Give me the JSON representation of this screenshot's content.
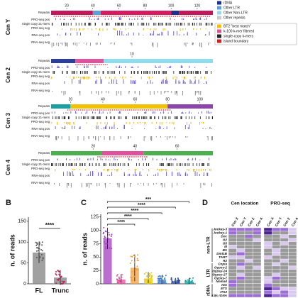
{
  "panel_a": {
    "legend_repeats": [
      {
        "name": "rDNA",
        "color": "#1d2f8f"
      },
      {
        "name": "Other LTR",
        "color": "#5aa0dc"
      },
      {
        "name": "Other Non-LTR",
        "color": "#9ad6ea"
      },
      {
        "name": "Other repeats",
        "color": "#c9c9c9"
      }
    ],
    "legend_marks": [
      {
        "name": "BT2 \"best match\"",
        "color": "#f2c200"
      },
      {
        "name": "k-100 k-mer filtered",
        "color": "#e0529c"
      },
      {
        "name": "single-copy k-mers",
        "color": "#222222"
      },
      {
        "name": "island boundary",
        "color": "#d62020"
      }
    ],
    "track_labels": [
      "Repeats",
      "PRO-seq pos",
      "Single copy 21-mers",
      "PRO-seq neg",
      "RNA-seq pos",
      "RNA-seq neg"
    ],
    "centromeres": [
      {
        "name": "Cen Y",
        "xlim": [
          8,
          132
        ],
        "ticks": [
          20,
          40,
          60,
          80,
          100,
          120
        ],
        "island": [
          10,
          130
        ],
        "repeats": [
          {
            "start": 8,
            "end": 40,
            "color": "#c2185b"
          },
          {
            "start": 40,
            "end": 46,
            "color": "#5aa0dc"
          },
          {
            "start": 46,
            "end": 100,
            "color": "#d81b60"
          },
          {
            "start": 100,
            "end": 106,
            "color": "#1d2f8f"
          },
          {
            "start": 106,
            "end": 132,
            "color": "#c2185b"
          }
        ]
      },
      {
        "name": "Cen 2",
        "xlim": [
          0,
          20
        ],
        "ticks": [
          10
        ],
        "island": [
          3,
          7
        ],
        "repeats": [
          {
            "start": 0,
            "end": 3,
            "color": "#2c3e9c"
          },
          {
            "start": 3,
            "end": 6.5,
            "color": "#e0529c"
          },
          {
            "start": 6.5,
            "end": 20,
            "color": "#8fdcec"
          }
        ]
      },
      {
        "name": "Cen 3",
        "xlim": [
          8,
          108
        ],
        "ticks": [
          20,
          40,
          60,
          80,
          100
        ],
        "island": [
          18,
          82
        ],
        "repeats": [
          {
            "start": 8,
            "end": 20,
            "color": "#1aa0a0"
          },
          {
            "start": 20,
            "end": 80,
            "color": "#f2c200"
          },
          {
            "start": 80,
            "end": 108,
            "color": "#8e44ad"
          }
        ]
      },
      {
        "name": "Cen 4",
        "xlim": [
          0,
          77
        ],
        "ticks": [
          20,
          40,
          60
        ],
        "island": [
          22,
          46
        ],
        "repeats": [
          {
            "start": 0,
            "end": 24,
            "color": "#4caf50"
          },
          {
            "start": 24,
            "end": 44,
            "color": "#e0529c"
          },
          {
            "start": 44,
            "end": 77,
            "color": "#4caf50"
          }
        ]
      }
    ]
  },
  "panel_b": {
    "letter": "B",
    "ylabel": "n. of reads",
    "categories": [
      "FL",
      "Trunc"
    ],
    "values": [
      75,
      15
    ],
    "errors": [
      25,
      18
    ],
    "ylim": [
      0,
      160
    ],
    "yticks": [
      0,
      50,
      100,
      150
    ],
    "color": "#8a8a8a",
    "significance": "****"
  },
  "panel_c": {
    "letter": "C",
    "ylabel": "n. of reads",
    "values": [
      85,
      8,
      30,
      10,
      8,
      5,
      5
    ],
    "errors": [
      20,
      10,
      25,
      12,
      8,
      6,
      6
    ],
    "colors": [
      "#a23fc0",
      "#e0529c",
      "#f0a040",
      "#e8c800",
      "#3f7fd0",
      "#2d4e9e",
      "#1aa0a0"
    ],
    "ylim": [
      0,
      130
    ],
    "yticks": [
      0,
      25,
      50,
      75,
      100,
      125
    ],
    "significance": [
      "***",
      "****",
      "****",
      "****",
      "****"
    ]
  },
  "panel_d": {
    "letter": "D",
    "groups": [
      "Cen location",
      "PRO-seq"
    ],
    "columns": [
      "Cen X",
      "Cen Y",
      "Cen 2",
      "Cen 4",
      "Cen X",
      "Cen Y",
      "Cen 2",
      "Cen 4"
    ],
    "rows": [
      "Jockey-3",
      "Jockey-1",
      "Doc",
      "G2",
      "G5",
      "I8",
      "BS",
      "Dmt1B",
      "TART",
      "R2",
      "Copia",
      "Gypsy-2",
      "Gypsy-24",
      "Gypsy-27",
      "Gypsy-7",
      "Nomad",
      "IGS",
      "ETS",
      "ITS2",
      "5.8s rDNA"
    ],
    "row_groups": [
      {
        "name": "non-LTR",
        "from": 0,
        "to": 9
      },
      {
        "name": "LTR",
        "from": 10,
        "to": 15
      },
      {
        "name": "rDNA",
        "from": 16,
        "to": 19
      }
    ],
    "palette": [
      "#9a9a9a",
      "#d9c9ef",
      "#9b6fd6",
      "#4a2590"
    ],
    "levels": [
      [
        2,
        2,
        2,
        2,
        3,
        2,
        2,
        1
      ],
      [
        2,
        0,
        0,
        2,
        3,
        0,
        0,
        1
      ],
      [
        0,
        0,
        2,
        0,
        0,
        0,
        1,
        0
      ],
      [
        0,
        0,
        0,
        1,
        0,
        0,
        0,
        1
      ],
      [
        0,
        0,
        0,
        0,
        1,
        0,
        1,
        0
      ],
      [
        1,
        0,
        0,
        0,
        1,
        0,
        0,
        0
      ],
      [
        0,
        1,
        0,
        0,
        0,
        1,
        0,
        0
      ],
      [
        0,
        2,
        0,
        0,
        0,
        1,
        0,
        0
      ],
      [
        1,
        1,
        0,
        0,
        1,
        0,
        0,
        0
      ],
      [
        0,
        0,
        1,
        0,
        0,
        0,
        1,
        0
      ],
      [
        0,
        2,
        0,
        0,
        0,
        1,
        0,
        0
      ],
      [
        0,
        1,
        0,
        1,
        0,
        0,
        0,
        1
      ],
      [
        0,
        0,
        0,
        0,
        0,
        0,
        0,
        0
      ],
      [
        0,
        1,
        0,
        0,
        0,
        1,
        0,
        0
      ],
      [
        0,
        2,
        0,
        0,
        1,
        2,
        0,
        0
      ],
      [
        2,
        0,
        0,
        0,
        1,
        0,
        0,
        0
      ],
      [
        2,
        0,
        0,
        0,
        2,
        0,
        0,
        0
      ],
      [
        0,
        0,
        0,
        0,
        3,
        2,
        1,
        1
      ],
      [
        0,
        0,
        0,
        0,
        2,
        1,
        2,
        1
      ],
      [
        2,
        2,
        2,
        2,
        3,
        2,
        2,
        1
      ]
    ]
  }
}
